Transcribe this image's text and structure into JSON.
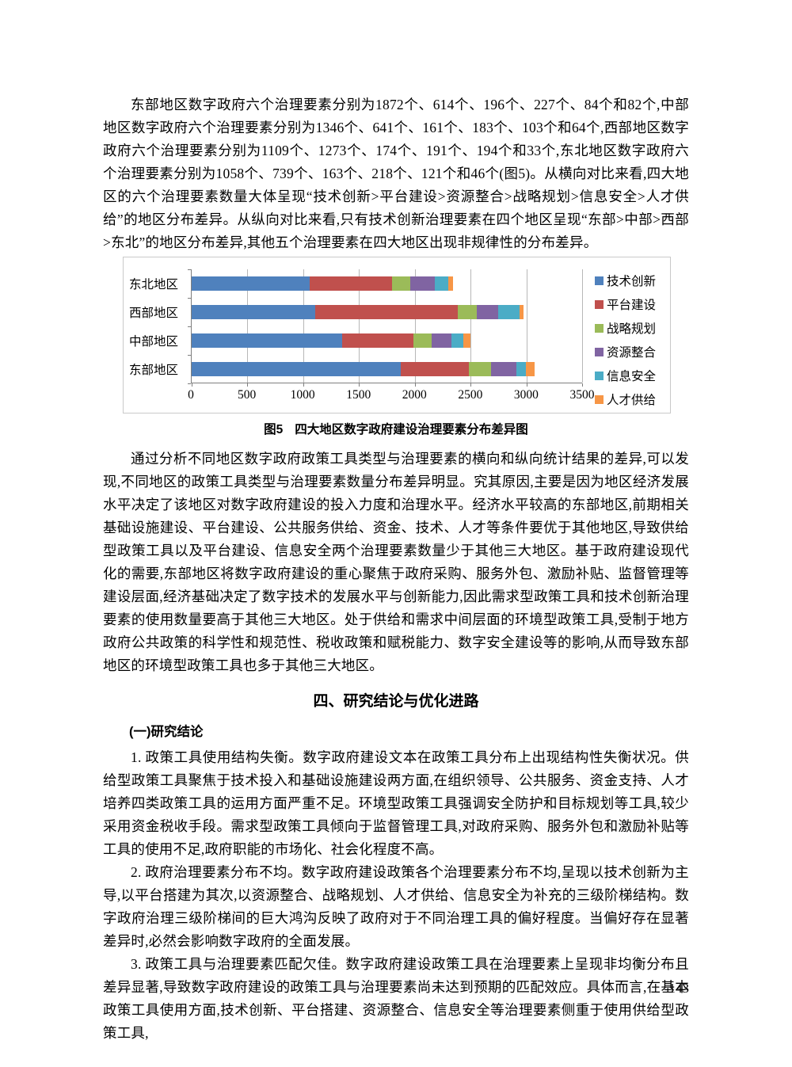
{
  "document": {
    "page_number": "143",
    "section_heading": "四、研究结论与优化进路",
    "subsection_heading": "(一)研究结论",
    "paragraphs": {
      "p1": "东部地区数字政府六个治理要素分别为1872个、614个、196个、227个、84个和82个,中部地区数字政府六个治理要素分别为1346个、641个、161个、183个、103个和64个,西部地区数字政府六个治理要素分别为1109个、1273个、174个、191个、194个和33个,东北地区数字政府六个治理要素分别为1058个、739个、163个、218个、121个和46个(图5)。从横向对比来看,四大地区的六个治理要素数量大体呈现“技术创新>平台建设>资源整合>战略规划>信息安全>人才供给”的地区分布差异。从纵向对比来看,只有技术创新治理要素在四个地区呈现“东部>中部>西部>东北”的地区分布差异,其他五个治理要素在四大地区出现非规律性的分布差异。",
      "p2": "通过分析不同地区数字政府政策工具类型与治理要素的横向和纵向统计结果的差异,可以发现,不同地区的政策工具类型与治理要素数量分布差异明显。究其原因,主要是因为地区经济发展水平决定了该地区对数字政府建设的投入力度和治理水平。经济水平较高的东部地区,前期相关基础设施建设、平台建设、公共服务供给、资金、技术、人才等条件要优于其他地区,导致供给型政策工具以及平台建设、信息安全两个治理要素数量少于其他三大地区。基于政府建设现代化的需要,东部地区将数字政府建设的重心聚焦于政府采购、服务外包、激励补贴、监督管理等建设层面,经济基础决定了数字技术的发展水平与创新能力,因此需求型政策工具和技术创新治理要素的使用数量要高于其他三大地区。处于供给和需求中间层面的环境型政策工具,受制于地方政府公共政策的科学性和规范性、税收政策和赋税能力、数字安全建设等的影响,从而导致东部地区的环境型政策工具也多于其他三大地区。",
      "p3": "1. 政策工具使用结构失衡。数字政府建设文本在政策工具分布上出现结构性失衡状况。供给型政策工具聚焦于技术投入和基础设施建设两方面,在组织领导、公共服务、资金支持、人才培养四类政策工具的运用方面严重不足。环境型政策工具强调安全防护和目标规划等工具,较少采用资金税收手段。需求型政策工具倾向于监督管理工具,对政府采购、服务外包和激励补贴等工具的使用不足,政府职能的市场化、社会化程度不高。",
      "p4": "2. 政府治理要素分布不均。数字政府建设政策各个治理要素分布不均,呈现以技术创新为主导,以平台搭建为其次,以资源整合、战略规划、人才供给、信息安全为补充的三级阶梯结构。数字政府治理三级阶梯间的巨大鸿沟反映了政府对于不同治理工具的偏好程度。当偏好存在显著差异时,必然会影响数字政府的全面发展。",
      "p5": "3. 政策工具与治理要素匹配欠佳。数字政府建设政策工具在治理要素上呈现非均衡分布且差异显著,导致数字政府建设的政策工具与治理要素尚未达到预期的匹配效应。具体而言,在基本政策工具使用方面,技术创新、平台搭建、资源整合、信息安全等治理要素侧重于使用供给型政策工具,"
    }
  },
  "figure": {
    "caption_label": "图5",
    "caption_text": "四大地区数字政府建设治理要素分布差异图"
  },
  "chart_data": {
    "type": "bar",
    "orientation": "horizontal",
    "stacked": true,
    "categories": [
      "东北地区",
      "西部地区",
      "中部地区",
      "东部地区"
    ],
    "series": [
      {
        "name": "技术创新",
        "color": "#4F81BD",
        "values": [
          1058,
          1109,
          1346,
          1872
        ]
      },
      {
        "name": "平台建设",
        "color": "#C0504D",
        "values": [
          739,
          1273,
          641,
          614
        ]
      },
      {
        "name": "战略规划",
        "color": "#9BBB59",
        "values": [
          163,
          174,
          161,
          196
        ]
      },
      {
        "name": "资源整合",
        "color": "#8064A2",
        "values": [
          218,
          191,
          183,
          227
        ]
      },
      {
        "name": "信息安全",
        "color": "#4BACC6",
        "values": [
          121,
          194,
          103,
          84
        ]
      },
      {
        "name": "人才供给",
        "color": "#F79646",
        "values": [
          46,
          33,
          64,
          82
        ]
      }
    ],
    "xlim": [
      0,
      3500
    ],
    "x_ticks": [
      0,
      500,
      1000,
      1500,
      2000,
      2500,
      3000,
      3500
    ],
    "grid": true,
    "legend_position": "right"
  }
}
